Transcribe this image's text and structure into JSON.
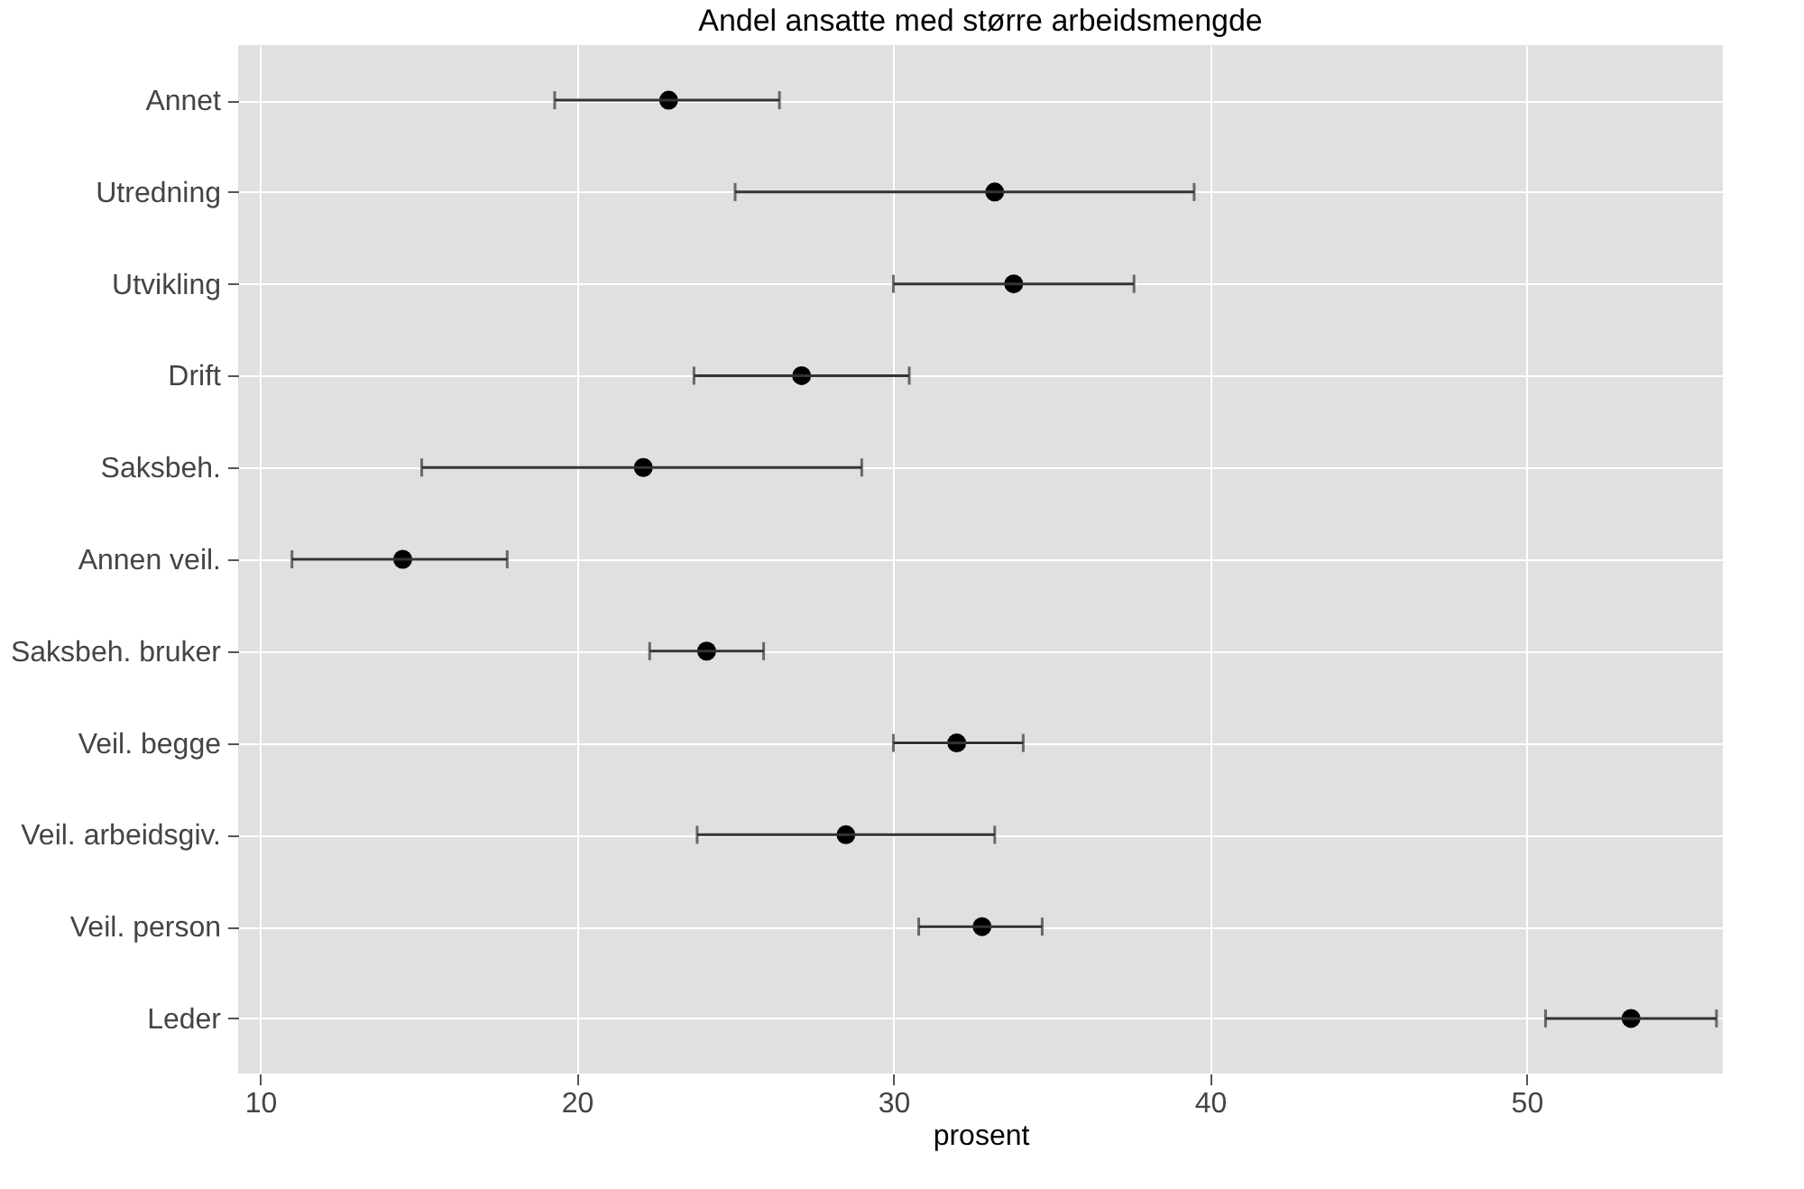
{
  "chart_data": {
    "type": "scatter",
    "title": "Andel ansatte med større arbeidsmengde",
    "xlabel": "prosent",
    "categories": [
      "Annet",
      "Utredning",
      "Utvikling",
      "Drift",
      "Saksbeh.",
      "Annen veil.",
      "Saksbeh. bruker",
      "Veil. begge",
      "Veil. arbeidsgiv.",
      "Veil. person",
      "Leder"
    ],
    "orientation": "horizontal",
    "values": [
      22.9,
      33.2,
      33.8,
      27.1,
      22.1,
      14.5,
      24.1,
      32.0,
      28.5,
      32.8,
      53.3
    ],
    "errors": [
      [
        19.3,
        26.4
      ],
      [
        25.0,
        39.5
      ],
      [
        30.0,
        37.6
      ],
      [
        23.7,
        30.5
      ],
      [
        15.1,
        29.0
      ],
      [
        11.0,
        17.8
      ],
      [
        22.3,
        25.9
      ],
      [
        30.0,
        34.1
      ],
      [
        23.8,
        33.2
      ],
      [
        30.8,
        34.7
      ],
      [
        50.6,
        56.0
      ]
    ],
    "color": "#000000",
    "xlim": [
      9.3,
      56.2
    ],
    "xticks": [
      10,
      20,
      30,
      40,
      50
    ],
    "grid": true,
    "marker": "circle"
  }
}
